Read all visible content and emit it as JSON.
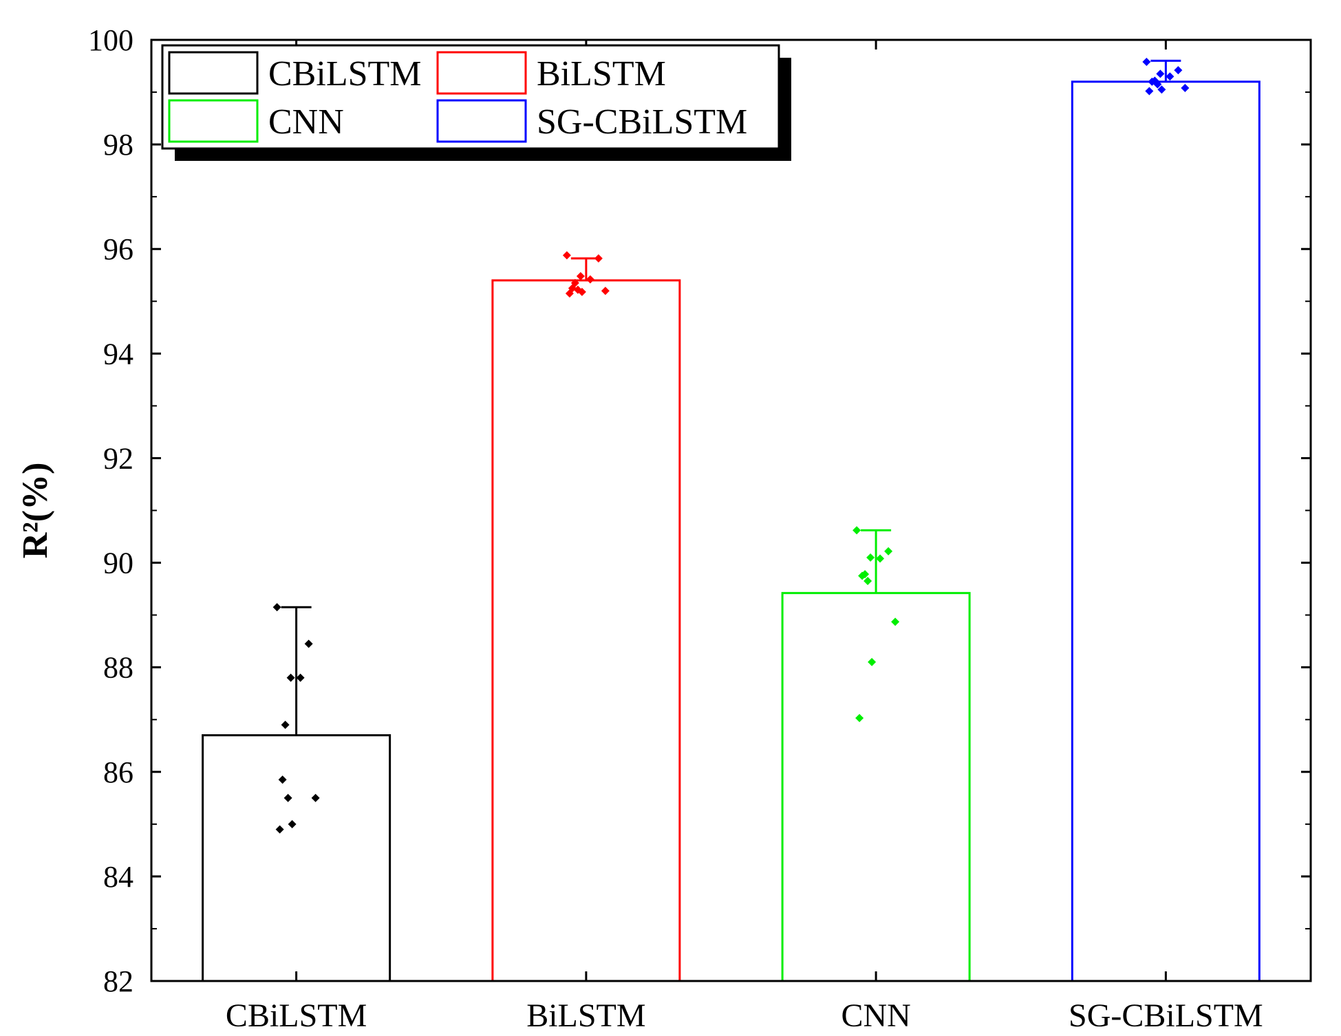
{
  "chart_data": {
    "type": "bar",
    "title": "",
    "xlabel": "",
    "ylabel": "R²(%)",
    "ylim": [
      82,
      100
    ],
    "yticks": [
      "82",
      "84",
      "86",
      "88",
      "90",
      "92",
      "94",
      "96",
      "98",
      "100"
    ],
    "grid": false,
    "legend_position": "top-left",
    "categories": [
      "CBiLSTM",
      "BiLSTM",
      "CNN",
      "SG-CBiLSTM"
    ],
    "series": [
      {
        "name": "CBiLSTM",
        "color": "#000000",
        "value": 86.7,
        "error": 2.45,
        "points": [
          89.15,
          88.45,
          87.8,
          87.8,
          86.9,
          85.85,
          85.5,
          85.5,
          85.0,
          84.9
        ]
      },
      {
        "name": "BiLSTM",
        "color": "#ff0000",
        "value": 95.4,
        "error": 0.42,
        "points": [
          95.88,
          95.82,
          95.48,
          95.42,
          95.35,
          95.25,
          95.22,
          95.2,
          95.18,
          95.15
        ]
      },
      {
        "name": "CNN",
        "color": "#00ee00",
        "value": 89.42,
        "error": 1.2,
        "points": [
          90.62,
          90.22,
          90.1,
          90.08,
          89.78,
          89.75,
          89.65,
          88.87,
          88.1,
          87.03
        ]
      },
      {
        "name": "SG-CBiLSTM",
        "color": "#0000ff",
        "value": 99.2,
        "error": 0.4,
        "points": [
          99.58,
          99.42,
          99.35,
          99.3,
          99.22,
          99.2,
          99.15,
          99.08,
          99.05,
          99.02
        ]
      }
    ]
  }
}
